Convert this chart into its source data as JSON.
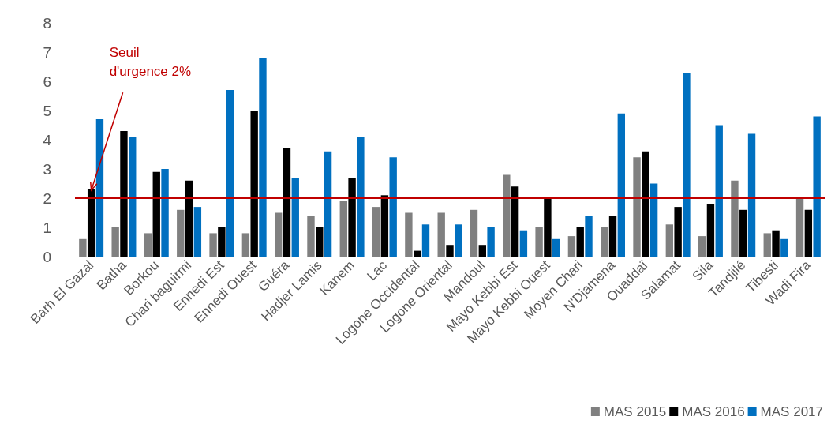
{
  "chart_data": {
    "type": "bar",
    "categories": [
      "Barh El Gazal",
      "Batha",
      "Borkou",
      "Chari baguirmi",
      "Ennedi Est",
      "Ennedi Ouest",
      "Guéra",
      "Hadjer Lamis",
      "Kanem",
      "Lac",
      "Logone Occidental",
      "Logone Oriental",
      "Mandoul",
      "Mayo Kebbi Est",
      "Mayo Kebbi Ouest",
      "Moyen Chari",
      "N'Djamena",
      "Ouaddaï",
      "Salamat",
      "Sila",
      "Tandjilé",
      "Tibesti",
      "Wadi Fira"
    ],
    "series": [
      {
        "name": "MAS 2015",
        "color": "#808080",
        "values": [
          0.6,
          1.0,
          0.8,
          1.6,
          0.8,
          0.8,
          1.5,
          1.4,
          1.9,
          1.7,
          1.5,
          1.5,
          1.6,
          2.8,
          1.0,
          0.7,
          1.0,
          3.4,
          1.1,
          0.7,
          2.6,
          0.8,
          2.0
        ]
      },
      {
        "name": "MAS 2016",
        "color": "#000000",
        "values": [
          2.3,
          4.3,
          2.9,
          2.6,
          1.0,
          5.0,
          3.7,
          1.0,
          2.7,
          2.1,
          0.2,
          0.4,
          0.4,
          2.4,
          2.0,
          1.0,
          1.4,
          3.6,
          1.7,
          1.8,
          1.6,
          0.9,
          1.6
        ]
      },
      {
        "name": "MAS 2017",
        "color": "#0070c0",
        "values": [
          4.7,
          4.1,
          3.0,
          1.7,
          5.7,
          6.8,
          2.7,
          3.6,
          4.1,
          3.4,
          1.1,
          1.1,
          1.0,
          0.9,
          0.6,
          1.4,
          4.9,
          2.5,
          6.3,
          4.5,
          4.2,
          0.6,
          4.8
        ]
      }
    ],
    "ylim": [
      0,
      8
    ],
    "yticks": [
      0,
      1,
      2,
      3,
      4,
      5,
      6,
      7,
      8
    ],
    "ref_lines": [
      {
        "axis": "y",
        "value": 2,
        "label": "Seuil d'urgence 2%",
        "color": "#c00000"
      }
    ],
    "grid": false,
    "legend": "bottom right"
  }
}
